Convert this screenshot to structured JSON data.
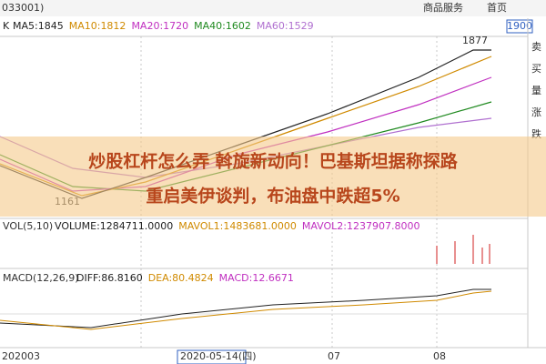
{
  "header": {
    "code": "033001)",
    "menu": [
      "商品服务",
      "首页"
    ],
    "price_box": "1900"
  },
  "indicators": {
    "k": "K",
    "ma": [
      {
        "text": "MA5:1845",
        "color": "#222222"
      },
      {
        "text": "MA10:1812",
        "color": "#d08a00"
      },
      {
        "text": "MA20:1720",
        "color": "#c030c0"
      },
      {
        "text": "MA40:1602",
        "color": "#208a20"
      },
      {
        "text": "MA60:1529",
        "color": "#b070d0"
      }
    ]
  },
  "annotations": {
    "high": "1877",
    "low": "1161"
  },
  "headline": [
    "炒股杠杆怎么弄 斡旋新动向！巴基斯坦据称探路",
    "重启美伊谈判，布油盘中跌超5%"
  ],
  "volume": {
    "name": "VOL(5,10)",
    "items": [
      "VOLUME:1284711.0000",
      "MAVOL1:1483681.0000",
      "MAVOL2:1237907.8000"
    ]
  },
  "macd": {
    "name": "MACD(12,26,9)",
    "items": [
      "DIFF:86.8160",
      "DEA:80.4824",
      "MACD:12.6671"
    ]
  },
  "x_axis": [
    "202003",
    "2020-05-14(四)",
    "07",
    "08"
  ],
  "side": [
    "卖",
    "买",
    "量",
    "涨",
    "跌"
  ]
}
